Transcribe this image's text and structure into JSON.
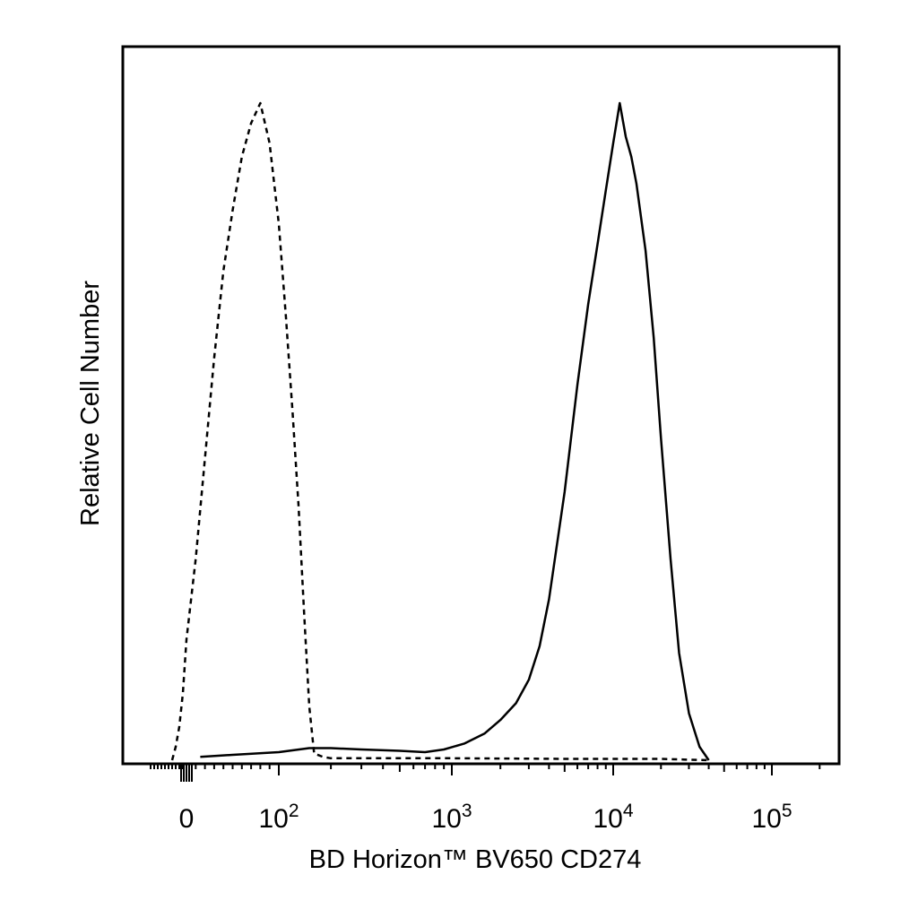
{
  "chart_data": {
    "type": "line",
    "title": "",
    "xlabel": "BD Horizon™ BV650 CD274",
    "ylabel": "Relative Cell Number",
    "x_scale": "biexponential",
    "xlim": [
      -100,
      250000
    ],
    "ylim": [
      0,
      100
    ],
    "grid": false,
    "legend": "none",
    "x_tick_labels": [
      {
        "value": 0,
        "base": "0",
        "exp": ""
      },
      {
        "value": 100,
        "base": "10",
        "exp": "2"
      },
      {
        "value": 1000,
        "base": "10",
        "exp": "3"
      },
      {
        "value": 10000,
        "base": "10",
        "exp": "4"
      },
      {
        "value": 100000,
        "base": "10",
        "exp": "5"
      }
    ],
    "series": [
      {
        "style": "dashed",
        "x": [
          -40,
          -30,
          -20,
          -10,
          0,
          10,
          20,
          30,
          40,
          50,
          60,
          70,
          80,
          90,
          100,
          110,
          120,
          130,
          140,
          150,
          160,
          180,
          200,
          250,
          400,
          1000,
          5000,
          20000,
          40000
        ],
        "y": [
          0,
          2,
          5,
          10,
          18,
          30,
          45,
          60,
          73,
          82,
          90,
          95,
          98,
          92,
          80,
          66,
          52,
          38,
          22,
          8,
          1,
          0.5,
          0.3,
          0.3,
          0.3,
          0.3,
          0.2,
          0.2,
          0
        ]
      },
      {
        "style": "solid",
        "x": [
          15,
          50,
          100,
          150,
          200,
          300,
          500,
          700,
          900,
          1200,
          1600,
          2000,
          2500,
          3000,
          3500,
          4000,
          5000,
          6000,
          7000,
          8000,
          9000,
          10000,
          11000,
          12000,
          13000,
          14000,
          16000,
          18000,
          20000,
          23000,
          26000,
          30000,
          35000,
          40000
        ],
        "y": [
          0.5,
          0.8,
          1.2,
          1.8,
          1.8,
          1.6,
          1.4,
          1.2,
          1.6,
          2.5,
          4,
          6,
          8.5,
          12,
          17,
          24,
          40,
          56,
          68,
          77,
          85,
          92,
          98,
          93,
          90,
          86,
          76,
          63,
          48,
          30,
          16,
          7,
          2,
          0
        ]
      }
    ]
  }
}
